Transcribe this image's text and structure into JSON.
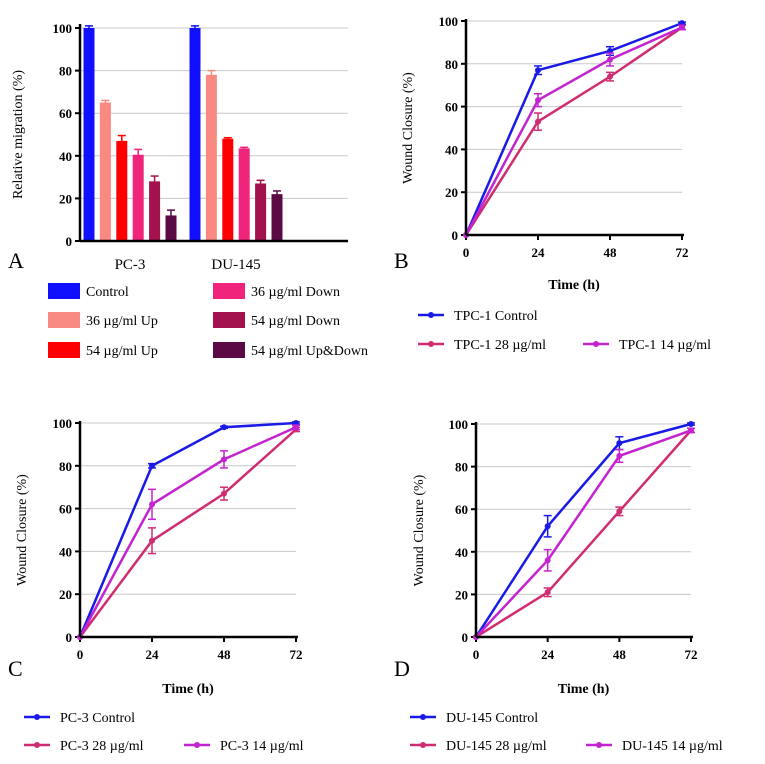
{
  "chart_data": [
    {
      "panel": "A",
      "type": "bar",
      "ylabel": "Relative migration (%)",
      "ylim": [
        0,
        100
      ],
      "yticks": [
        "0",
        "20",
        "40",
        "60",
        "80",
        "100"
      ],
      "categories": [
        "PC-3",
        "DU-145"
      ],
      "series": [
        {
          "name": "Control",
          "color": "#1010ff",
          "values": [
            100,
            100
          ],
          "errors": [
            1,
            1
          ]
        },
        {
          "name": "36 µg/ml Up",
          "color": "#f98a82",
          "values": [
            65,
            78
          ],
          "errors": [
            1,
            2
          ]
        },
        {
          "name": "54 µg/ml Up",
          "color": "#ff0000",
          "values": [
            47,
            48
          ],
          "errors": [
            2.5,
            0.5
          ]
        },
        {
          "name": "36 µg/ml Down",
          "color": "#f0247a",
          "values": [
            40.5,
            43.5
          ],
          "errors": [
            2.5,
            0.5
          ]
        },
        {
          "name": "54 µg/ml Down",
          "color": "#a3124d",
          "values": [
            28,
            27
          ],
          "errors": [
            2.5,
            1.5
          ]
        },
        {
          "name": "54 µg/ml Up&Down",
          "color": "#5c0a45",
          "values": [
            12,
            22
          ],
          "errors": [
            2.5,
            1.5
          ]
        }
      ]
    },
    {
      "panel": "B",
      "type": "line",
      "xlabel": "Time (h)",
      "ylabel": "Wound Closure (%)",
      "x": [
        0,
        24,
        48,
        72
      ],
      "xticks": [
        "0",
        "24",
        "48",
        "72"
      ],
      "yticks": [
        "0",
        "20",
        "40",
        "60",
        "80",
        "100"
      ],
      "ylim": [
        0,
        100
      ],
      "series": [
        {
          "name": "TPC-1 Control",
          "color": "#1a1ae6",
          "values": [
            0,
            77,
            86,
            99
          ],
          "errors": [
            0,
            2,
            2,
            0.5
          ]
        },
        {
          "name": "TPC-1 28 µg/ml",
          "color": "#d02c70",
          "values": [
            0,
            53,
            74,
            97
          ],
          "errors": [
            0,
            4,
            2,
            1
          ]
        },
        {
          "name": "TPC-1 14 µg/ml",
          "color": "#c424d0",
          "values": [
            0,
            63,
            82,
            97
          ],
          "errors": [
            0,
            3,
            3,
            1
          ]
        }
      ]
    },
    {
      "panel": "C",
      "type": "line",
      "xlabel": "Time (h)",
      "ylabel": "Wound Closure (%)",
      "x": [
        0,
        24,
        48,
        72
      ],
      "xticks": [
        "0",
        "24",
        "48",
        "72"
      ],
      "yticks": [
        "0",
        "20",
        "40",
        "60",
        "80",
        "100"
      ],
      "ylim": [
        0,
        100
      ],
      "series": [
        {
          "name": "PC-3 Control",
          "color": "#1a1ae6",
          "values": [
            0,
            80,
            98,
            100
          ],
          "errors": [
            0,
            1,
            0.5,
            0.5
          ]
        },
        {
          "name": "PC-3 28 µg/ml",
          "color": "#d02c70",
          "values": [
            0,
            45,
            67,
            97
          ],
          "errors": [
            0,
            6,
            3,
            1
          ]
        },
        {
          "name": "PC-3 14 µg/ml",
          "color": "#c424d0",
          "values": [
            0,
            62,
            83,
            98
          ],
          "errors": [
            0,
            7,
            4,
            1
          ]
        }
      ]
    },
    {
      "panel": "D",
      "type": "line",
      "xlabel": "Time (h)",
      "ylabel": "Wound Closure (%)",
      "x": [
        0,
        24,
        48,
        72
      ],
      "xticks": [
        "0",
        "24",
        "48",
        "72"
      ],
      "yticks": [
        "0",
        "20",
        "40",
        "60",
        "80",
        "100"
      ],
      "ylim": [
        0,
        100
      ],
      "series": [
        {
          "name": "DU-145 Control",
          "color": "#1a1ae6",
          "values": [
            0,
            52,
            91,
            100
          ],
          "errors": [
            0,
            5,
            3,
            0.5
          ]
        },
        {
          "name": "DU-145 28 µg/ml",
          "color": "#d02c70",
          "values": [
            0,
            21,
            59,
            97
          ],
          "errors": [
            0,
            2,
            2,
            1
          ]
        },
        {
          "name": "DU-145 14 µg/ml",
          "color": "#c424d0",
          "values": [
            0,
            36,
            85,
            97
          ],
          "errors": [
            0,
            5,
            3,
            1
          ]
        }
      ]
    }
  ]
}
